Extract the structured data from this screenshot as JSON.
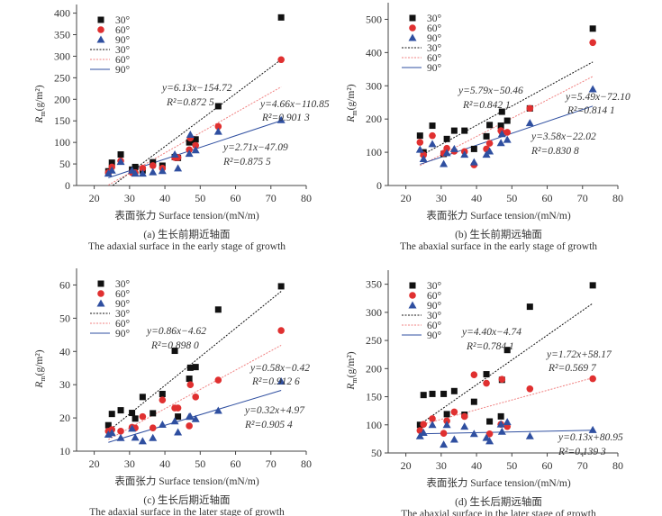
{
  "chart_data": [
    {
      "type": "scatter",
      "caption_cn": "(a) 生长前期近轴面",
      "caption_en": "The adaxial surface in the early stage of growth",
      "xlabel": "表面张力 Surface tension/(mN/m)",
      "ylabel": {
        "symbol": "R",
        "sub": "m",
        "unit": "(g/m²)"
      },
      "xlim": [
        15,
        80
      ],
      "xticks": [
        20,
        30,
        40,
        50,
        60,
        70,
        80
      ],
      "ylim": [
        0,
        420
      ],
      "yticks": [
        0,
        50,
        100,
        150,
        200,
        250,
        300,
        350,
        400
      ],
      "x": [
        24,
        25,
        27.5,
        30.7,
        31.6,
        33.7,
        36.6,
        39.3,
        42.8,
        43.7,
        46.9,
        47.2,
        48.7,
        55.1,
        72.9
      ],
      "series": [
        {
          "name": "30°",
          "marker": "square",
          "color": "#111111",
          "values": [
            33,
            53,
            72,
            37,
            43,
            35,
            54,
            46,
            66,
            64,
            100,
            105,
            107,
            184,
            390
          ],
          "fit": {
            "slope": 6.13,
            "intercept": -154.72,
            "equation": "y=6.13x−154.72",
            "r2": "R²=0.872 5",
            "style": "dotted"
          }
        },
        {
          "name": "60°",
          "marker": "circle",
          "color": "#e03030",
          "values": [
            30,
            43,
            57,
            30,
            30,
            40,
            46,
            40,
            65,
            65,
            83,
            110,
            93,
            137,
            292
          ],
          "fit": {
            "slope": 4.66,
            "intercept": -110.85,
            "equation": "y=4.66x−110.85",
            "r2": "R²=0.901 3",
            "style": "dotted"
          }
        },
        {
          "name": "90°",
          "marker": "triangle",
          "color": "#2f4fa0",
          "values": [
            28,
            35,
            55,
            35,
            28,
            28,
            31,
            34,
            72,
            40,
            74,
            118,
            82,
            125,
            152
          ],
          "fit": {
            "slope": 2.71,
            "intercept": -47.09,
            "equation": "y=2.71x−47.09",
            "r2": "R²=0.875 5",
            "style": "solid"
          }
        }
      ],
      "legend": "top-left"
    },
    {
      "type": "scatter",
      "caption_cn": "(b) 生长前期远轴面",
      "caption_en": "The abaxial surface in the early stage of growth",
      "xlabel": "表面张力 Surface tension/(mN/m)",
      "ylabel": {
        "symbol": "R",
        "sub": "m",
        "unit": "(g/m²)"
      },
      "xlim": [
        15,
        80
      ],
      "xticks": [
        20,
        30,
        40,
        50,
        60,
        70,
        80
      ],
      "ylim": [
        0,
        550
      ],
      "yticks": [
        0,
        100,
        200,
        300,
        400,
        500
      ],
      "x": [
        24,
        25,
        27.5,
        30.7,
        31.6,
        33.7,
        36.6,
        39.3,
        42.8,
        43.7,
        46.9,
        47.2,
        48.7,
        55.1,
        72.9
      ],
      "series": [
        {
          "name": "30°",
          "marker": "square",
          "color": "#111111",
          "values": [
            150,
            100,
            180,
            95,
            140,
            165,
            165,
            110,
            148,
            182,
            180,
            222,
            195,
            232,
            472
          ],
          "fit": {
            "slope": 5.79,
            "intercept": -50.46,
            "equation": "y=5.79x−50.46",
            "r2": "R²=0.842 1",
            "style": "dotted"
          }
        },
        {
          "name": "60°",
          "marker": "circle",
          "color": "#e03030",
          "values": [
            130,
            92,
            150,
            97,
            112,
            103,
            102,
            62,
            110,
            127,
            165,
            160,
            160,
            232,
            430
          ],
          "fit": {
            "slope": 5.49,
            "intercept": -72.1,
            "equation": "y=5.49x−72.10",
            "r2": "R²=0.814 1",
            "style": "dotted"
          }
        },
        {
          "name": "90°",
          "marker": "triangle",
          "color": "#2f4fa0",
          "values": [
            108,
            80,
            125,
            65,
            98,
            110,
            93,
            70,
            93,
            103,
            128,
            155,
            138,
            188,
            290
          ],
          "fit": {
            "slope": 3.58,
            "intercept": -22.02,
            "equation": "y=3.58x−22.02",
            "r2": "R²=0.830 8",
            "style": "solid"
          }
        }
      ],
      "legend": "top-left"
    },
    {
      "type": "scatter",
      "caption_cn": "(c) 生长后期近轴面",
      "caption_en": "The adaxial surface in the later stage of growth",
      "xlabel": "表面张力 Surface tension/(mN/m)",
      "ylabel": {
        "symbol": "R",
        "sub": "m",
        "unit": "(g/m²)"
      },
      "xlim": [
        15,
        80
      ],
      "xticks": [
        20,
        30,
        40,
        50,
        60,
        70,
        80
      ],
      "ylim": [
        10,
        65
      ],
      "yticks": [
        10,
        20,
        30,
        40,
        50,
        60
      ],
      "x": [
        24,
        25,
        27.5,
        30.7,
        31.6,
        33.7,
        36.6,
        39.3,
        42.8,
        43.7,
        46.9,
        47.2,
        48.7,
        55.1,
        72.9
      ],
      "series": [
        {
          "name": "30°",
          "marker": "square",
          "color": "#111111",
          "values": [
            17.8,
            21.2,
            22.3,
            21.5,
            19.8,
            26.3,
            21.4,
            27.2,
            40.2,
            20.4,
            31.8,
            35.1,
            35.3,
            52.6,
            59.6
          ],
          "fit": {
            "slope": 0.86,
            "intercept": -4.62,
            "equation": "y=0.86x−4.62",
            "r2": "R²=0.898 0",
            "style": "dotted"
          }
        },
        {
          "name": "60°",
          "marker": "circle",
          "color": "#e03030",
          "values": [
            16,
            16.5,
            16,
            17.2,
            17,
            20.4,
            17,
            25.4,
            23,
            23,
            17.6,
            30,
            26.3,
            31.4,
            46.3
          ],
          "fit": {
            "slope": 0.58,
            "intercept": -0.42,
            "equation": "y=0.58x−0.42",
            "r2": "R²=0.912 6",
            "style": "dotted"
          }
        },
        {
          "name": "90°",
          "marker": "triangle",
          "color": "#2f4fa0",
          "values": [
            15,
            15.5,
            14,
            16.8,
            14.1,
            13,
            14,
            18,
            19,
            15.7,
            20.4,
            20.4,
            19.7,
            22.2,
            31
          ],
          "fit": {
            "slope": 0.32,
            "intercept": 4.97,
            "equation": "y=0.32x+4.97",
            "r2": "R²=0.905 4",
            "style": "solid"
          }
        }
      ],
      "legend": "top-left"
    },
    {
      "type": "scatter",
      "caption_cn": "(d) 生长后期远轴面",
      "caption_en": "The abaxial surface in the later stage of growth",
      "xlabel": "表面张力 Surface tension/(mN/m)",
      "ylabel": {
        "symbol": "R",
        "sub": "m",
        "unit": "(g/m²)"
      },
      "xlim": [
        15,
        80
      ],
      "xticks": [
        20,
        30,
        40,
        50,
        60,
        70,
        80
      ],
      "ylim": [
        50,
        375
      ],
      "yticks": [
        50,
        100,
        150,
        200,
        250,
        300,
        350
      ],
      "x": [
        24,
        25,
        27.5,
        30.7,
        31.6,
        33.7,
        36.6,
        39.3,
        42.8,
        43.7,
        46.9,
        47.2,
        48.7,
        55.1,
        72.9
      ],
      "series": [
        {
          "name": "30°",
          "marker": "square",
          "color": "#111111",
          "values": [
            100,
            153,
            155,
            155,
            119,
            160,
            118,
            141,
            190,
            106,
            115,
            180,
            233,
            310,
            348
          ],
          "fit": {
            "slope": 4.4,
            "intercept": -4.74,
            "equation": "y=4.40x−4.74",
            "r2": "R²=0.784 1",
            "style": "dotted"
          }
        },
        {
          "name": "60°",
          "marker": "circle",
          "color": "#e03030",
          "values": [
            90,
            101,
            111,
            85,
            107,
            123,
            115,
            189,
            174,
            84,
            101,
            181,
            97,
            164,
            182
          ],
          "fit": {
            "slope": 1.72,
            "intercept": 58.17,
            "equation": "y=1.72x+58.17",
            "r2": "R²=0.569 7",
            "style": "dotted"
          }
        },
        {
          "name": "90°",
          "marker": "triangle",
          "color": "#2f4fa0",
          "values": [
            80,
            86,
            100,
            65,
            100,
            74,
            97,
            84,
            77,
            71,
            101,
            88,
            105,
            80,
            91
          ],
          "fit": {
            "slope": 0.13,
            "intercept": 80.95,
            "equation": "y=0.13x+80.95",
            "r2": "R²=0.139 3",
            "style": "solid"
          }
        }
      ],
      "legend": "top-left"
    }
  ]
}
